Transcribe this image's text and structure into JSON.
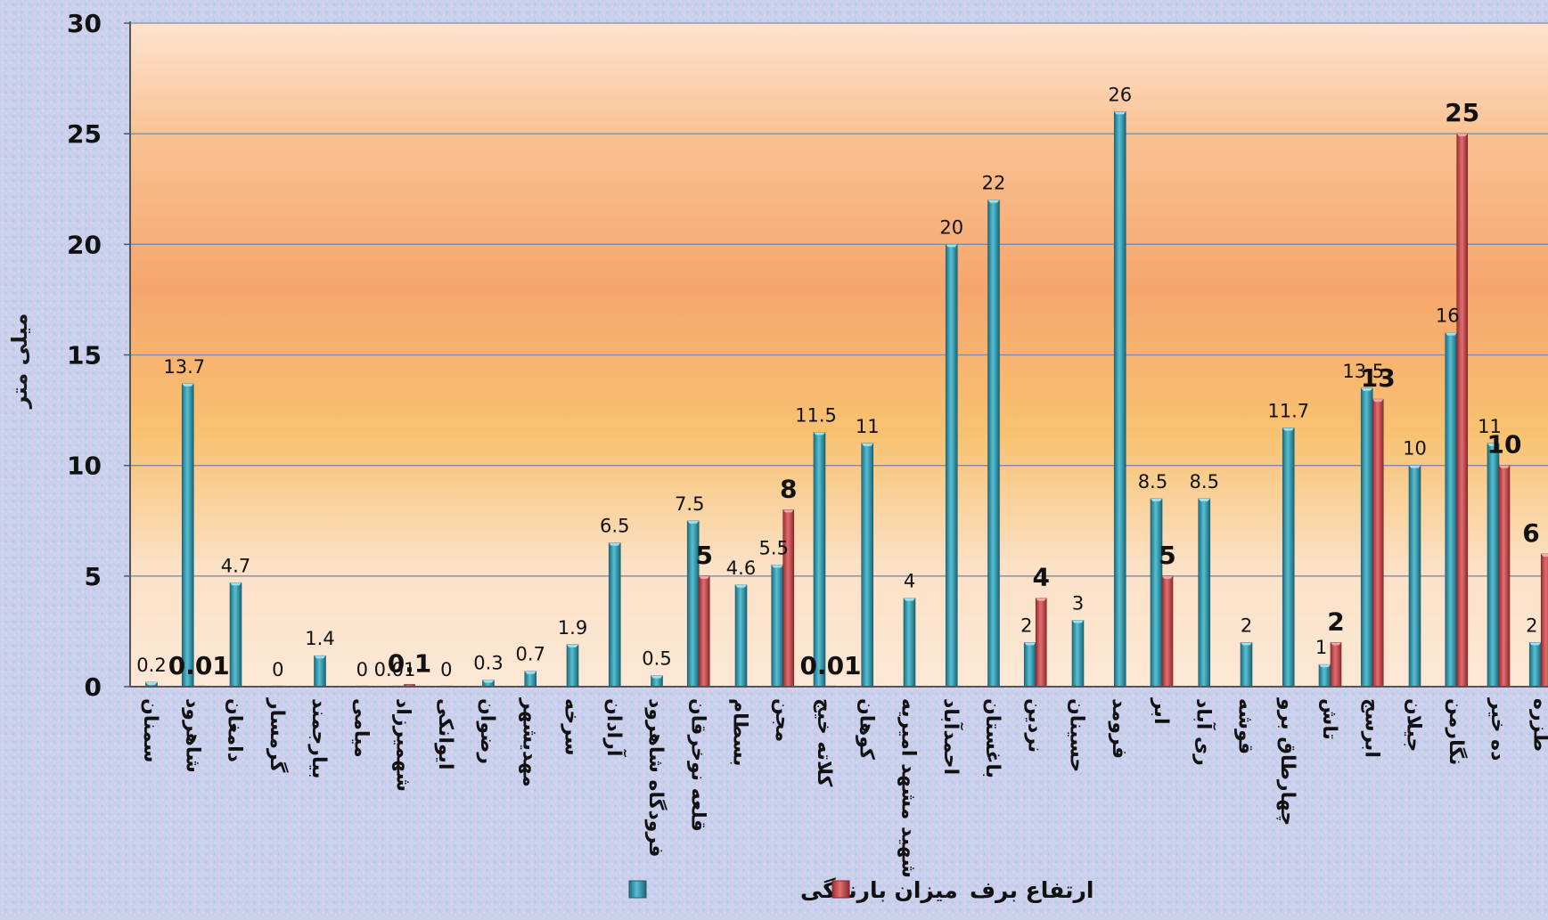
{
  "chart_data": {
    "type": "bar",
    "title": "",
    "xlabel": "",
    "ylabel": "میلی متر",
    "ylim": [
      0,
      30
    ],
    "yticks": [
      0,
      5,
      10,
      15,
      20,
      25,
      30
    ],
    "grid": true,
    "legend_position": "bottom",
    "categories": [
      "سمنان",
      "شاهرود",
      "دامغان",
      "گرمسار",
      "بیارجمند",
      "میامی",
      "شهمیرزاد",
      "ایوانکی",
      "رضوان",
      "مهدیشهر",
      "سرخه",
      "آرادان",
      "فرودگاه شاهرود",
      "قلعه نوخرقان",
      "بسطام",
      "مجن",
      "کلاته خیج",
      "کوهان",
      "شهید مشهد امیریه",
      "احمدآباد",
      "باغستان",
      "نردین",
      "حسینان",
      "فرومد",
      "ابر",
      "ری آباد",
      "قوشه",
      "چهارطاق برو",
      "تاش",
      "ابرسج",
      "جیلان",
      "نگارمن",
      "ده خیر",
      "طزره"
    ],
    "series": [
      {
        "name": "میزان بارندگی",
        "color": "#2a8fa5",
        "values": [
          0.2,
          13.7,
          4.7,
          0,
          1.4,
          0,
          0.01,
          0,
          0.3,
          0.7,
          1.9,
          6.5,
          0.5,
          7.5,
          4.6,
          5.5,
          11.5,
          11,
          4,
          20,
          22,
          2,
          3,
          26,
          8.5,
          8.5,
          2,
          11.7,
          1,
          13.5,
          10,
          16,
          11,
          2
        ],
        "labels": [
          "0.2",
          "13.7",
          "4.7",
          "0",
          "1.4",
          "0",
          "0.01",
          "0",
          "0.3",
          "0.7",
          "1.9",
          "6.5",
          "0.5",
          "7.5",
          "4.6",
          "5.5",
          "11.5",
          "11",
          "4",
          "20",
          "22",
          "2",
          "3",
          "26",
          "8.5",
          "8.5",
          "2",
          "11.7",
          "1",
          "13.5",
          "10",
          "16",
          "11",
          "2"
        ]
      },
      {
        "name": "ارتفاع برف",
        "color": "#c4474b",
        "values": [
          null,
          0.01,
          null,
          null,
          null,
          null,
          0.1,
          null,
          null,
          null,
          null,
          null,
          null,
          5,
          null,
          8,
          0.01,
          null,
          null,
          null,
          null,
          4,
          null,
          null,
          5,
          null,
          null,
          null,
          2,
          13,
          null,
          25,
          10,
          6
        ],
        "labels": [
          "",
          "0.01",
          "",
          "",
          "",
          "",
          "0.1",
          "",
          "",
          "",
          "",
          "",
          "",
          "5",
          "",
          "8",
          "0.01",
          "",
          "",
          "",
          "",
          "4",
          "",
          "",
          "5",
          "",
          "",
          "",
          "2",
          "13",
          "",
          "25",
          "10",
          "6"
        ]
      }
    ]
  }
}
